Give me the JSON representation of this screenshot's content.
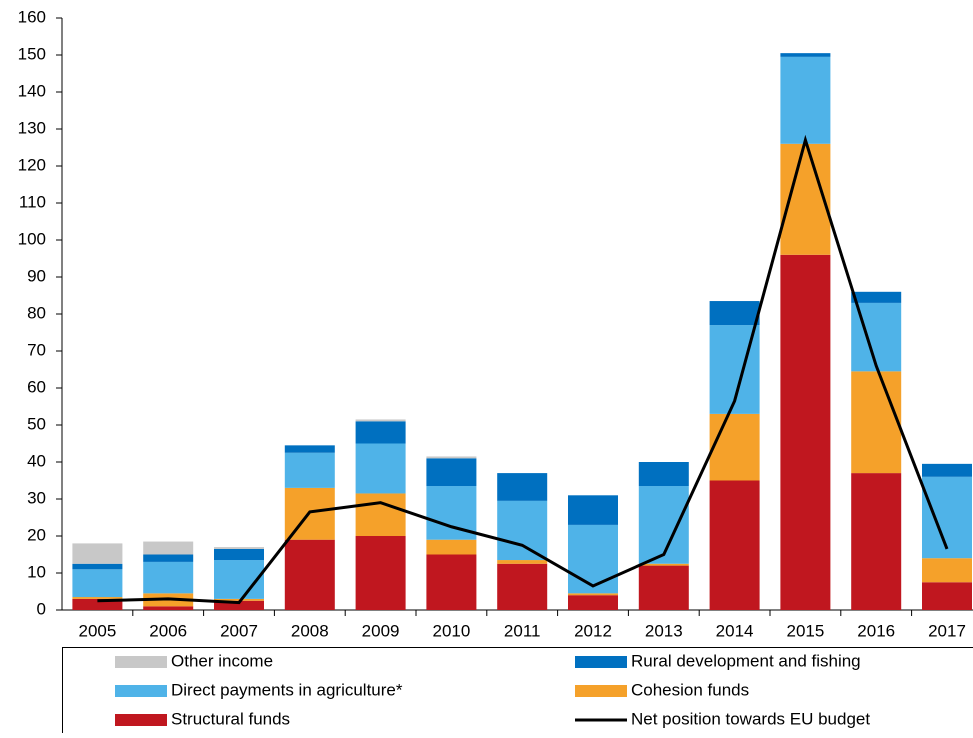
{
  "chart_data": {
    "type": "bar",
    "stacked": true,
    "categories": [
      "2005",
      "2006",
      "2007",
      "2008",
      "2009",
      "2010",
      "2011",
      "2012",
      "2013",
      "2014",
      "2015",
      "2016",
      "2017"
    ],
    "series": [
      {
        "name": "Structural funds",
        "color": "#c0171f",
        "values": [
          3,
          1,
          2.5,
          19,
          20,
          15,
          12.5,
          4,
          12,
          35,
          96,
          37,
          7.5
        ]
      },
      {
        "name": "Cohesion funds",
        "color": "#f5a12a",
        "values": [
          0.5,
          3.5,
          0.5,
          14,
          11.5,
          4,
          1,
          0.5,
          0.5,
          18,
          30,
          27.5,
          6.5
        ]
      },
      {
        "name": "Direct payments in agriculture*",
        "color": "#4fb3e8",
        "values": [
          7.5,
          8.5,
          10.5,
          9.5,
          13.5,
          14.5,
          16,
          18.5,
          21,
          24,
          23.5,
          18.5,
          22
        ]
      },
      {
        "name": "Rural development and fishing",
        "color": "#0070c0",
        "values": [
          1.5,
          2,
          3,
          2,
          6,
          7.5,
          7.5,
          8,
          6.5,
          6.5,
          1,
          3,
          3.5
        ]
      },
      {
        "name": "Other income",
        "color": "#c8c8c8",
        "values": [
          5.5,
          3.5,
          0.5,
          0,
          0.5,
          0.5,
          0,
          0,
          0,
          0,
          0,
          0,
          0
        ]
      },
      {
        "name": "Net position towards EU budget",
        "color": "#000000",
        "type": "line",
        "values": [
          2.5,
          3,
          2,
          26.5,
          29,
          22.5,
          17.5,
          6.5,
          15,
          56.5,
          127,
          66,
          16.5
        ]
      }
    ],
    "ylim": [
      0,
      160
    ],
    "yticks": [
      0,
      10,
      20,
      30,
      40,
      50,
      60,
      70,
      80,
      90,
      100,
      110,
      120,
      130,
      140,
      150,
      160
    ],
    "grid": false
  }
}
